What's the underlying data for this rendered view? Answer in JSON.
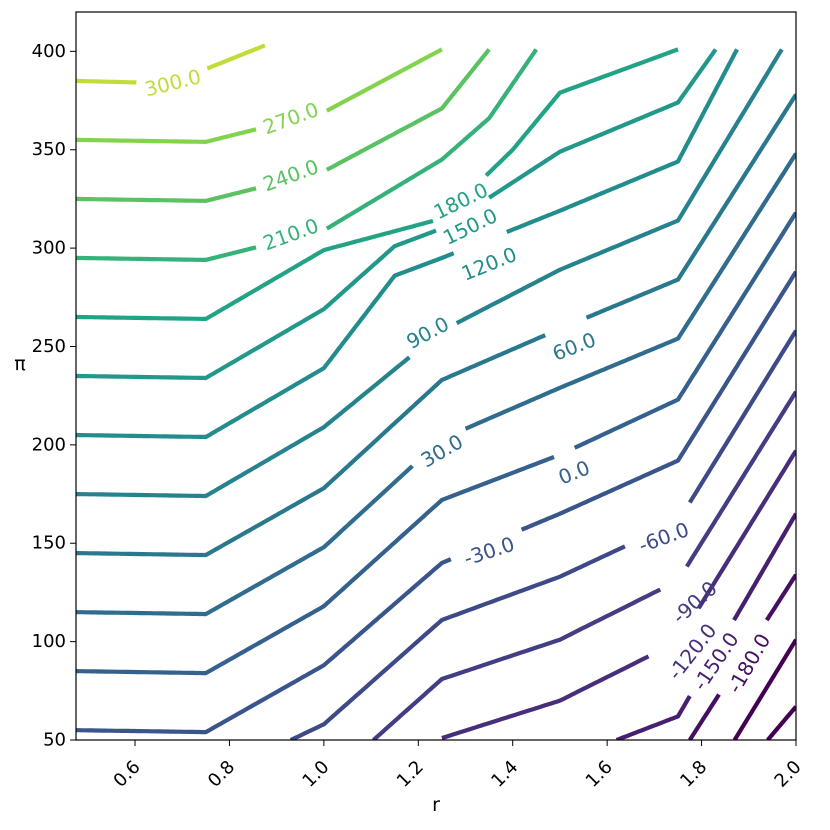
{
  "chart_data": {
    "type": "contour",
    "title": "",
    "xlabel": "r",
    "ylabel": "π",
    "xlim": [
      0.475,
      2.0
    ],
    "ylim": [
      50,
      420
    ],
    "xticks": [
      0.6,
      0.8,
      1.0,
      1.2,
      1.4,
      1.6,
      1.8,
      2.0
    ],
    "yticks": [
      50,
      100,
      150,
      200,
      250,
      300,
      350,
      400
    ],
    "xtick_labels": [
      "0.6",
      "0.8",
      "1.0",
      "1.2",
      "1.4",
      "1.6",
      "1.8",
      "2.0"
    ],
    "ytick_labels": [
      "50",
      "100",
      "150",
      "200",
      "250",
      "300",
      "350",
      "400"
    ],
    "grid": false,
    "colormap": "viridis",
    "level_range": [
      -210,
      330
    ],
    "levels": [
      {
        "level": 300,
        "label": "300.0",
        "points": [
          [
            0.475,
            385
          ],
          [
            0.63,
            384
          ],
          [
            0.72,
            389
          ],
          [
            0.75,
            391
          ],
          [
            0.875,
            403
          ]
        ]
      },
      {
        "level": 270,
        "label": "270.0",
        "points": [
          [
            0.475,
            355
          ],
          [
            0.75,
            354
          ],
          [
            1.0,
            369
          ],
          [
            1.25,
            401
          ]
        ]
      },
      {
        "level": 240,
        "label": "240.0",
        "points": [
          [
            0.475,
            325
          ],
          [
            0.75,
            324
          ],
          [
            1.0,
            339
          ],
          [
            1.25,
            371
          ],
          [
            1.35,
            401
          ]
        ]
      },
      {
        "level": 210,
        "label": "210.0",
        "points": [
          [
            0.475,
            295
          ],
          [
            0.75,
            294
          ],
          [
            1.0,
            309
          ],
          [
            1.25,
            345
          ],
          [
            1.35,
            366
          ],
          [
            1.45,
            401
          ]
        ]
      },
      {
        "level": 180,
        "label": "180.0",
        "points": [
          [
            0.475,
            265
          ],
          [
            0.75,
            264
          ],
          [
            1.0,
            299
          ],
          [
            1.25,
            315
          ],
          [
            1.4,
            350
          ],
          [
            1.5,
            379
          ],
          [
            1.75,
            401
          ]
        ]
      },
      {
        "level": 150,
        "label": "150.0",
        "points": [
          [
            0.475,
            235
          ],
          [
            0.75,
            234
          ],
          [
            1.0,
            269
          ],
          [
            1.15,
            301
          ],
          [
            1.25,
            310
          ],
          [
            1.5,
            349
          ],
          [
            1.75,
            374
          ],
          [
            1.83,
            401
          ]
        ]
      },
      {
        "level": 120,
        "label": "120.0",
        "points": [
          [
            0.475,
            205
          ],
          [
            0.75,
            204
          ],
          [
            1.0,
            239
          ],
          [
            1.15,
            286
          ],
          [
            1.25,
            295
          ],
          [
            1.5,
            319
          ],
          [
            1.75,
            344
          ],
          [
            1.875,
            401
          ]
        ]
      },
      {
        "level": 90,
        "label": "90.0",
        "points": [
          [
            0.475,
            175
          ],
          [
            0.75,
            174
          ],
          [
            1.0,
            209
          ],
          [
            1.25,
            258
          ],
          [
            1.5,
            289
          ],
          [
            1.75,
            314
          ],
          [
            1.97,
            401
          ]
        ]
      },
      {
        "level": 60,
        "label": "60.0",
        "points": [
          [
            0.475,
            145
          ],
          [
            0.75,
            144
          ],
          [
            1.0,
            178
          ],
          [
            1.25,
            233
          ],
          [
            1.5,
            259
          ],
          [
            1.75,
            284
          ],
          [
            2.0,
            378
          ]
        ]
      },
      {
        "level": 30,
        "label": "30.0",
        "points": [
          [
            0.475,
            115
          ],
          [
            0.75,
            114
          ],
          [
            1.0,
            148
          ],
          [
            1.25,
            203
          ],
          [
            1.5,
            229
          ],
          [
            1.75,
            254
          ],
          [
            2.0,
            348
          ]
        ]
      },
      {
        "level": 0,
        "label": "0.0",
        "points": [
          [
            0.475,
            85
          ],
          [
            0.75,
            84
          ],
          [
            1.0,
            118
          ],
          [
            1.25,
            172
          ],
          [
            1.5,
            195
          ],
          [
            1.75,
            223
          ],
          [
            2.0,
            318
          ]
        ]
      },
      {
        "level": -30,
        "label": "-30.0",
        "points": [
          [
            0.475,
            55
          ],
          [
            0.75,
            54
          ],
          [
            1.0,
            88
          ],
          [
            1.25,
            140
          ],
          [
            1.5,
            165
          ],
          [
            1.75,
            192
          ],
          [
            2.0,
            288
          ]
        ]
      },
      {
        "level": -60,
        "label": "-60.0",
        "points": [
          [
            0.93,
            50
          ],
          [
            1.0,
            58
          ],
          [
            1.25,
            111
          ],
          [
            1.5,
            133
          ],
          [
            1.75,
            161
          ],
          [
            2.0,
            258
          ]
        ]
      },
      {
        "level": -90,
        "label": "-90.0",
        "points": [
          [
            1.105,
            50
          ],
          [
            1.25,
            81
          ],
          [
            1.5,
            101
          ],
          [
            1.75,
            131
          ],
          [
            2.0,
            227
          ]
        ]
      },
      {
        "level": -120,
        "label": "-120.0",
        "points": [
          [
            1.25,
            51
          ],
          [
            1.5,
            70
          ],
          [
            1.75,
            100
          ],
          [
            2.0,
            197
          ]
        ]
      },
      {
        "level": -150,
        "label": "-150.0",
        "points": [
          [
            1.62,
            50
          ],
          [
            1.75,
            62
          ],
          [
            2.0,
            165
          ]
        ]
      },
      {
        "level": -180,
        "label": "-180.0",
        "points": [
          [
            1.775,
            50
          ],
          [
            2.0,
            134
          ]
        ]
      },
      {
        "level": -210,
        "label": "",
        "points": [
          [
            1.87,
            50
          ],
          [
            2.0,
            101
          ]
        ]
      },
      {
        "level": -240,
        "label": "",
        "points": [
          [
            1.94,
            50
          ],
          [
            2.0,
            67
          ]
        ]
      }
    ]
  }
}
